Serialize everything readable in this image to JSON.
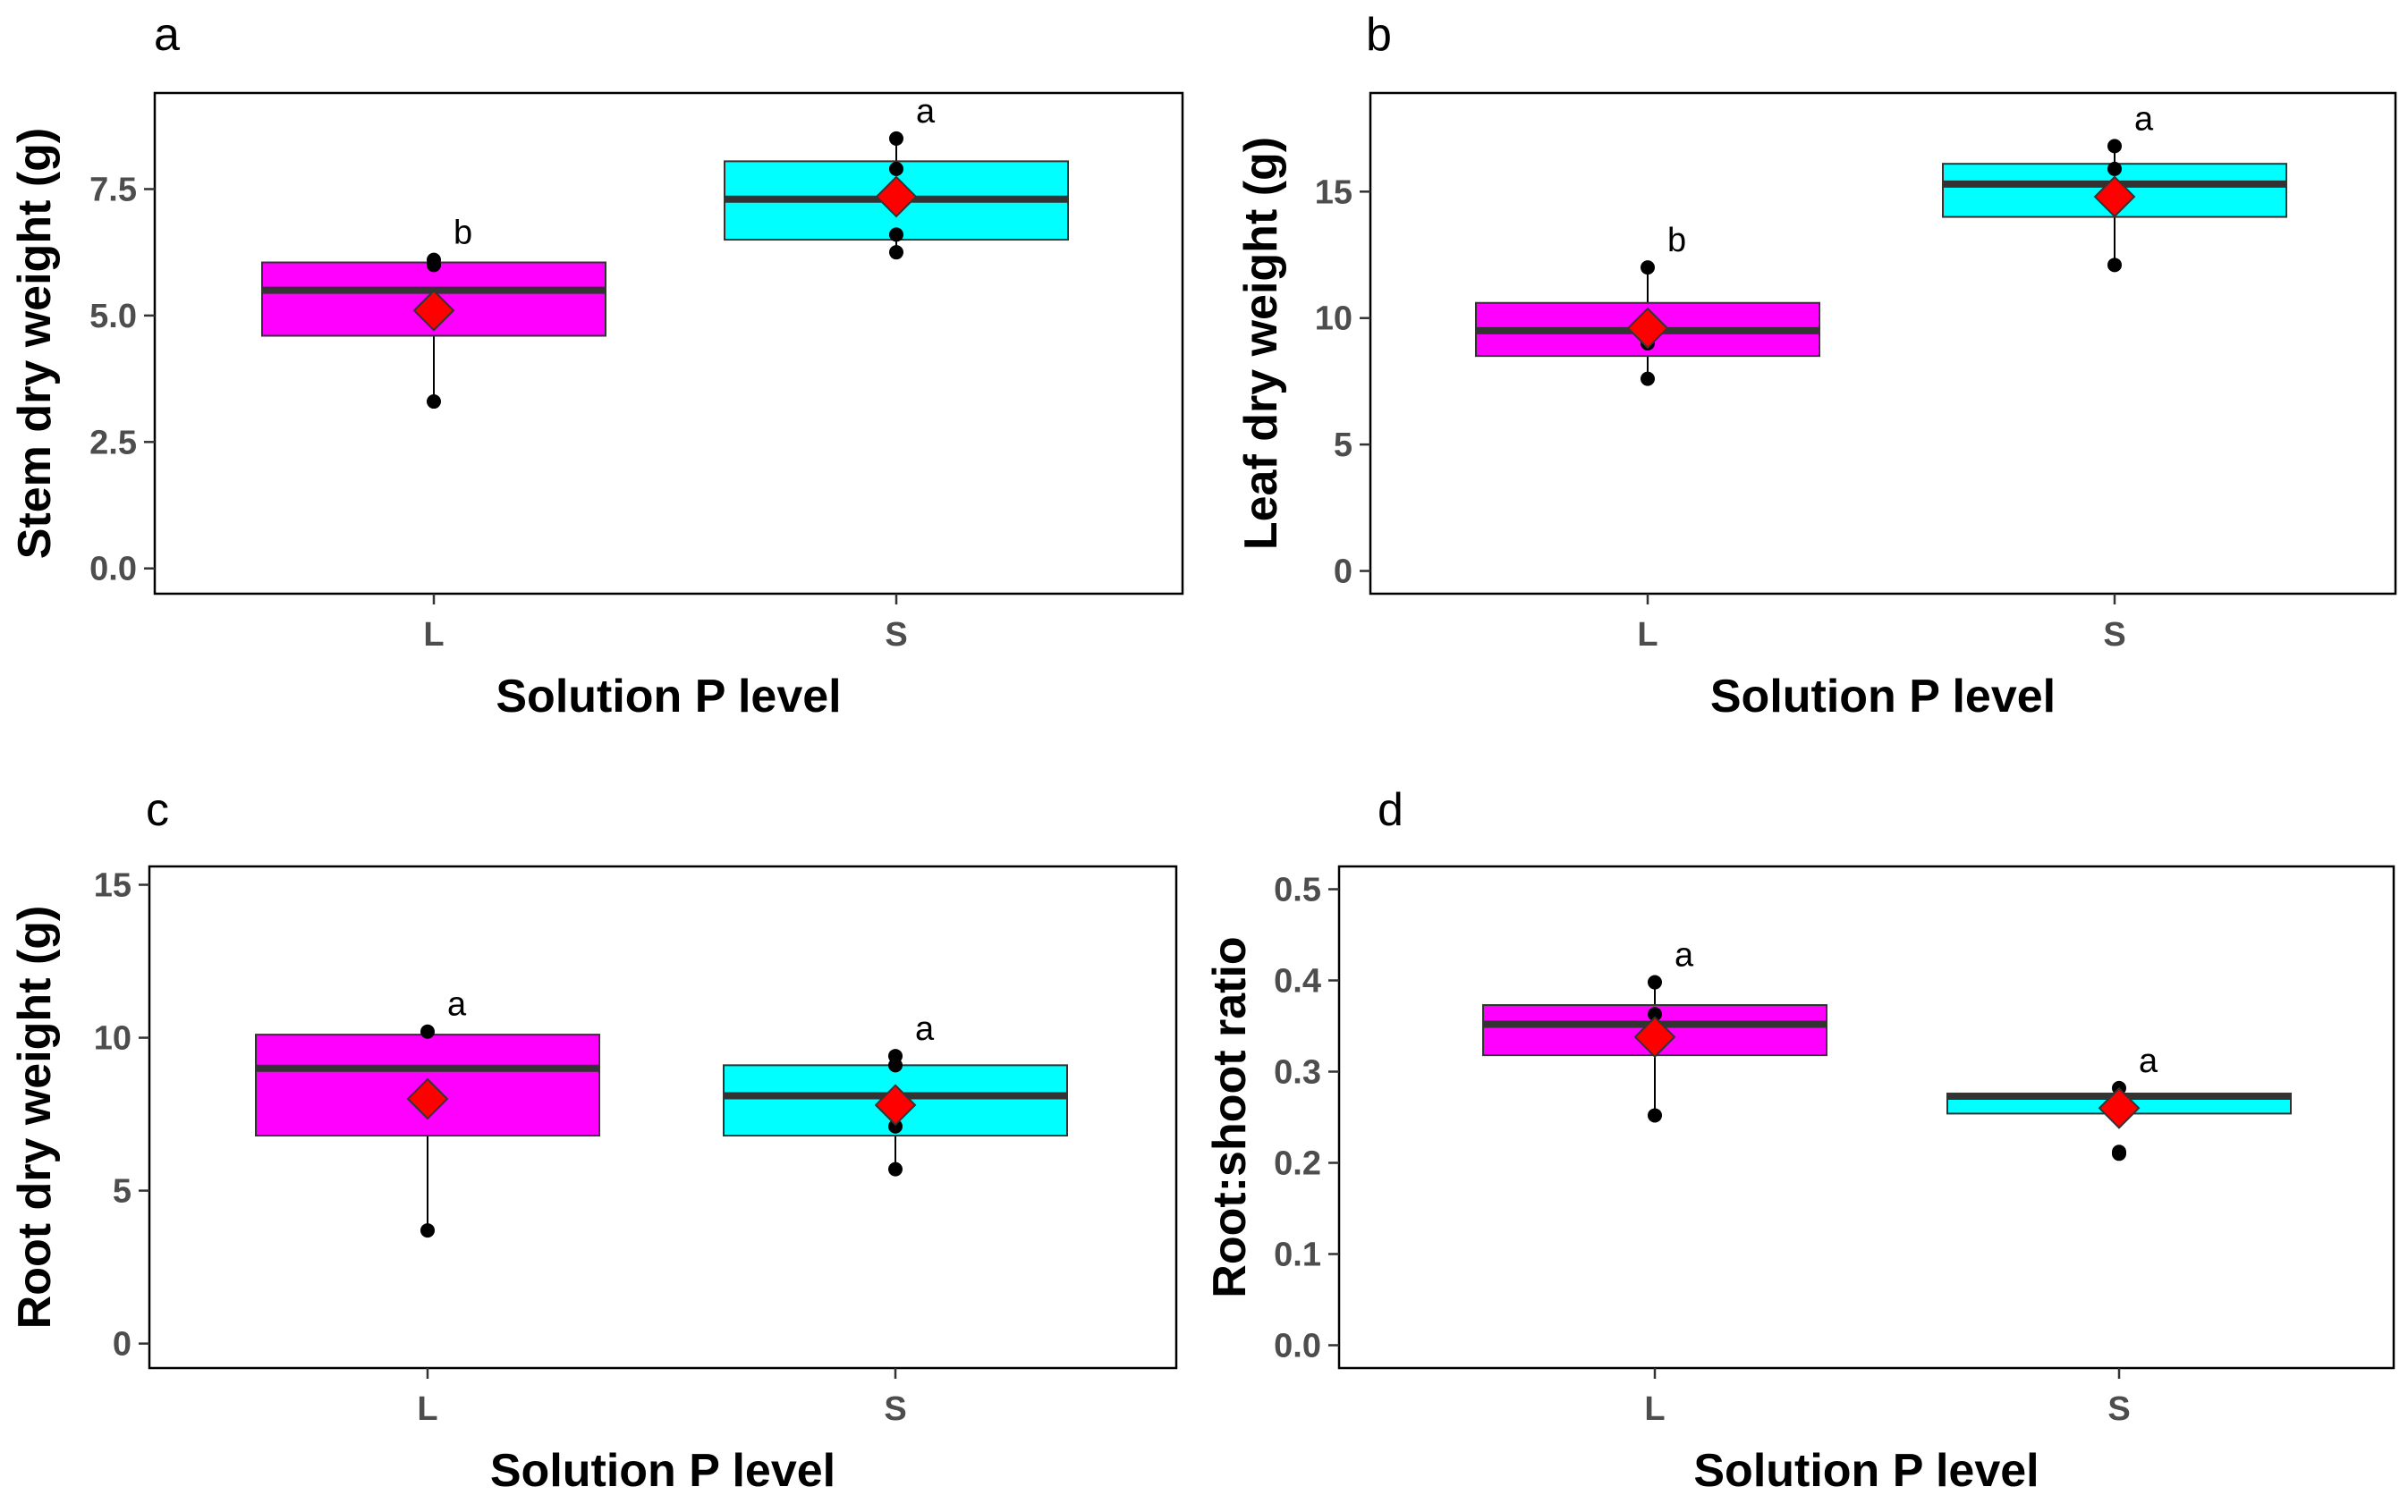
{
  "figure": {
    "colors": {
      "L": "#ff00ff",
      "S": "#00ffff",
      "mean_marker": "#ff0000",
      "median_line": "#333333",
      "points": "#000000"
    },
    "marker_icon": "red-diamond-mean-icon"
  },
  "chart_data": [
    {
      "panel": "a",
      "type": "box",
      "xlabel": "Solution P level",
      "ylabel": "Stem dry weight (g)",
      "categories": [
        "L",
        "S"
      ],
      "ylim": [
        -0.5,
        9.4
      ],
      "yticks": [
        0.0,
        2.5,
        5.0,
        7.5
      ],
      "ytick_labels": [
        "0.0",
        "2.5",
        "5.0",
        "7.5"
      ],
      "boxes": [
        {
          "category": "L",
          "q1": 4.6,
          "median": 5.5,
          "q3": 6.05,
          "whisker_low": 3.3,
          "whisker_high": 6.1,
          "mean": 5.1,
          "points": [
            3.3,
            6.0,
            6.1
          ],
          "letter": "b"
        },
        {
          "category": "S",
          "q1": 6.5,
          "median": 7.3,
          "q3": 8.05,
          "whisker_low": 6.25,
          "whisker_high": 8.5,
          "mean": 7.35,
          "points": [
            6.25,
            6.6,
            7.9,
            8.5
          ],
          "letter": "a"
        }
      ]
    },
    {
      "panel": "b",
      "type": "box",
      "xlabel": "Solution P level",
      "ylabel": "Leaf dry weight (g)",
      "categories": [
        "L",
        "S"
      ],
      "ylim": [
        -0.9,
        18.9
      ],
      "yticks": [
        0,
        5,
        10,
        15
      ],
      "ytick_labels": [
        "0",
        "5",
        "10",
        "15"
      ],
      "boxes": [
        {
          "category": "L",
          "q1": 8.5,
          "median": 9.5,
          "q3": 10.6,
          "whisker_low": 7.6,
          "whisker_high": 12.0,
          "mean": 9.6,
          "points": [
            7.6,
            9.0,
            12.0
          ],
          "letter": "b"
        },
        {
          "category": "S",
          "q1": 14.0,
          "median": 15.3,
          "q3": 16.1,
          "whisker_low": 12.1,
          "whisker_high": 16.8,
          "mean": 14.8,
          "points": [
            12.1,
            15.9,
            16.8
          ],
          "letter": "a"
        }
      ]
    },
    {
      "panel": "c",
      "type": "box",
      "xlabel": "Solution P level",
      "ylabel": "Root dry weight (g)",
      "categories": [
        "L",
        "S"
      ],
      "ylim": [
        -0.8,
        15.6
      ],
      "yticks": [
        0,
        5,
        10,
        15
      ],
      "ytick_labels": [
        "0",
        "5",
        "10",
        "15"
      ],
      "boxes": [
        {
          "category": "L",
          "q1": 6.8,
          "median": 9.0,
          "q3": 10.1,
          "whisker_low": 3.7,
          "whisker_high": 10.2,
          "mean": 8.0,
          "points": [
            3.7,
            10.2
          ],
          "letter": "a"
        },
        {
          "category": "S",
          "q1": 6.8,
          "median": 8.1,
          "q3": 9.1,
          "whisker_low": 5.7,
          "whisker_high": 9.4,
          "mean": 7.8,
          "points": [
            5.7,
            7.1,
            9.1,
            9.4
          ],
          "letter": "a"
        }
      ]
    },
    {
      "panel": "d",
      "type": "box",
      "xlabel": "Solution P level",
      "ylabel": "Root:shoot ratio",
      "categories": [
        "L",
        "S"
      ],
      "ylim": [
        -0.025,
        0.525
      ],
      "yticks": [
        0.0,
        0.1,
        0.2,
        0.3,
        0.4,
        0.5
      ],
      "ytick_labels": [
        "0.0",
        "0.1",
        "0.2",
        "0.3",
        "0.4",
        "0.5"
      ],
      "boxes": [
        {
          "category": "L",
          "q1": 0.318,
          "median": 0.352,
          "q3": 0.373,
          "whisker_low": 0.252,
          "whisker_high": 0.398,
          "mean": 0.338,
          "points": [
            0.252,
            0.363,
            0.398
          ],
          "letter": "a"
        },
        {
          "category": "S",
          "q1": 0.254,
          "median": 0.273,
          "q3": 0.276,
          "whisker_low": 0.254,
          "whisker_high": 0.282,
          "mean": 0.26,
          "points": [
            0.21,
            0.212,
            0.282
          ],
          "letter": "a"
        }
      ]
    }
  ]
}
